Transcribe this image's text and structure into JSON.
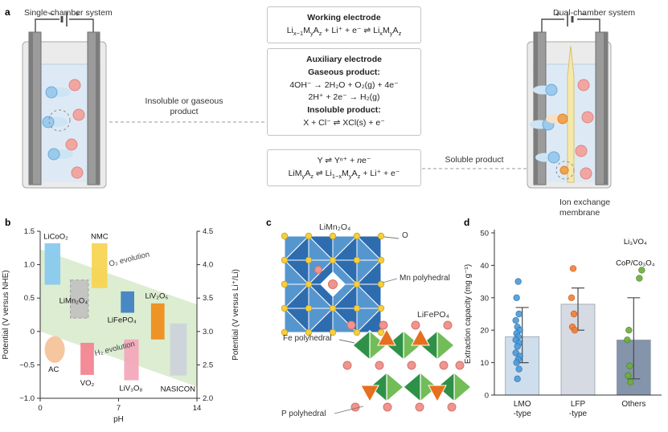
{
  "panels": {
    "a": {
      "label": "a",
      "left_title": "Single-chamber system",
      "right_title": "Dual-chamber system",
      "insoluble_label": "Insoluble or gaseous product",
      "soluble_label": "Soluble product",
      "membrane_label": "Ion exchange membrane",
      "signs": {
        "left_neg": "−",
        "left_pos": "+",
        "right_pos": "+",
        "right_neg": "−"
      },
      "working_box": {
        "title": "Working electrode",
        "eq": "Li<sub>x−1</sub>M<sub>y</sub>A<sub>z</sub> + Li⁺ + e⁻ ⇌ Li<sub>x</sub>M<sub>y</sub>A<sub>z</sub>"
      },
      "auxiliary_box": {
        "title": "Auxiliary electrode",
        "gaseous_heading": "Gaseous product:",
        "gaseous_eq1": "4OH⁻ → 2H₂O + O₂(g) + 4e⁻",
        "gaseous_eq2": "2H⁺ + 2e⁻ → H₂(g)",
        "insoluble_heading": "Insoluble product:",
        "insoluble_eq": "X + Cl⁻ ⇌ XCl(s) + e⁻"
      },
      "soluble_box": {
        "eq1": "Y ⇌ Yⁿ⁺ + <i>n</i>e⁻",
        "eq2": "LiM<sub>y</sub>A<sub>z</sub> ⇌ Li<sub>1−x</sub>M<sub>y</sub>A<sub>z</sub> + Li⁺ + e⁻"
      }
    },
    "b": {
      "label": "b"
    },
    "c": {
      "label": "c",
      "structure1_title": "LiMn₂O₄",
      "o_label": "O",
      "mn_label": "Mn polyhedral",
      "structure2_title": "LiFePO₄",
      "fe_label": "Fe polyhedral",
      "p_label": "P polyhedral",
      "colors": {
        "mn_face_dark": "#2e6cb0",
        "mn_face_light": "#5696cf",
        "o_atom": "#f4d03f",
        "o_stroke": "#c9a227",
        "li_atom": "#f0948e",
        "li_stroke": "#d4736c",
        "fe_face_dark": "#2f9147",
        "fe_face_light": "#72bd58",
        "p_tetra": "#e6701e"
      }
    },
    "d": {
      "label": "d"
    }
  },
  "chart_data": [
    {
      "panel": "b",
      "type": "scatter",
      "title": "",
      "xlabel": "pH",
      "ylabel_left": "Potential (V versus NHE)",
      "ylabel_right": "Potential (V versus Li⁺/Li)",
      "xlim": [
        0,
        14
      ],
      "ylim_left": [
        -1.0,
        1.5
      ],
      "ylim_right": [
        2.0,
        4.5
      ],
      "xticks": [
        [
          0,
          "0"
        ],
        [
          7,
          "7"
        ],
        [
          14,
          "14"
        ]
      ],
      "yticks_left": [
        [
          1.5,
          "1.5"
        ],
        [
          1.0,
          "1.0"
        ],
        [
          0.5,
          "0.5"
        ],
        [
          0,
          "0"
        ],
        [
          -0.5,
          "−0.5"
        ],
        [
          -1.0,
          "−1.0"
        ]
      ],
      "yticks_right": [
        [
          1.5,
          "4.5"
        ],
        [
          1.0,
          "4.0"
        ],
        [
          0.5,
          "3.5"
        ],
        [
          0,
          "3.0"
        ],
        [
          -0.5,
          "2.5"
        ],
        [
          -1.0,
          "2.0"
        ]
      ],
      "stability_band": {
        "o2_intercept": 1.23,
        "h2_intercept": 0,
        "slope": -0.059,
        "color": "#ddedd2"
      },
      "annotations": [
        {
          "text": "O₂ evolution",
          "ph": 8.0,
          "v": 1.05,
          "rotate": -14
        },
        {
          "text": "H₂ evolution",
          "ph": 6.7,
          "v": -0.29,
          "rotate": -14
        }
      ],
      "materials": [
        {
          "name": "LiCoO₂",
          "shape": "rect",
          "ph": [
            0.4,
            1.8
          ],
          "v": [
            0.7,
            1.32
          ],
          "color": "#85c9ef",
          "label_ph": 0.3,
          "label_v": 1.42,
          "anchor": "start"
        },
        {
          "name": "NMC",
          "shape": "rect",
          "ph": [
            4.6,
            6.0
          ],
          "v": [
            0.65,
            1.32
          ],
          "color": "#f6d44e",
          "label_ph": 5.3,
          "label_v": 1.42,
          "anchor": "middle"
        },
        {
          "name": "LiMn₂O₄",
          "shape": "rect-dashed",
          "ph": [
            2.7,
            4.3
          ],
          "v": [
            0.2,
            0.77
          ],
          "color": "#c2c2c2",
          "label_ph": 4.25,
          "label_v": 0.46,
          "anchor": "end"
        },
        {
          "name": "LiFePO₄",
          "shape": "rect",
          "ph": [
            7.2,
            8.4
          ],
          "v": [
            0.28,
            0.6
          ],
          "color": "#3c7fc0",
          "label_ph": 7.3,
          "label_v": 0.17,
          "anchor": "middle"
        },
        {
          "name": "LiV₂O₅",
          "shape": "rect",
          "ph": [
            9.9,
            11.1
          ],
          "v": [
            -0.12,
            0.42
          ],
          "color": "#ef8b16",
          "label_ph": 10.4,
          "label_v": 0.53,
          "anchor": "middle"
        },
        {
          "name": "AC",
          "shape": "ellipse",
          "ph": [
            0.4,
            2.2
          ],
          "v": [
            -0.47,
            -0.07
          ],
          "color": "#f6c39a",
          "label_ph": 1.2,
          "label_v": -0.57,
          "anchor": "middle"
        },
        {
          "name": "VO₂",
          "shape": "rect",
          "ph": [
            3.6,
            4.8
          ],
          "v": [
            -0.65,
            -0.17
          ],
          "color": "#f2828e",
          "label_ph": 4.2,
          "label_v": -0.77,
          "anchor": "middle"
        },
        {
          "name": "LiV₃O₈",
          "shape": "rect",
          "ph": [
            7.5,
            8.8
          ],
          "v": [
            -0.73,
            -0.12
          ],
          "color": "#f3a6ba",
          "label_ph": 8.1,
          "label_v": -0.85,
          "anchor": "middle"
        },
        {
          "name": "NASICON",
          "shape": "rect",
          "ph": [
            11.6,
            13.1
          ],
          "v": [
            -0.66,
            0.12
          ],
          "color": "#ccd2da",
          "label_ph": 12.3,
          "label_v": -0.86,
          "anchor": "middle"
        }
      ]
    },
    {
      "panel": "d",
      "type": "bar",
      "ylabel": "Extraction capacity (mg g⁻¹)",
      "ylim": [
        0,
        50
      ],
      "yticks": [
        0,
        10,
        20,
        30,
        40,
        50
      ],
      "bars": [
        {
          "category_lines": [
            "LMO",
            "-type"
          ],
          "mean": 18,
          "err": [
            10,
            27
          ],
          "fill": "#cfdeed",
          "points": [
            35,
            30,
            25,
            23,
            21,
            20,
            19,
            18,
            17,
            16,
            15,
            13,
            12,
            11,
            10,
            8,
            5
          ],
          "point_dx": [
            -5,
            -7,
            -4,
            -8,
            -6,
            -3,
            -7,
            -5,
            -8,
            -4,
            -6,
            -8,
            -3,
            -5,
            -7,
            -4,
            -6
          ],
          "point_color": "#4f9cd8",
          "point_stroke": "#2e77b5"
        },
        {
          "category_lines": [
            "LFP",
            "-type"
          ],
          "mean": 28,
          "err": [
            20,
            33
          ],
          "fill": "#d6dae2",
          "points": [
            39,
            30,
            25,
            21,
            20
          ],
          "point_dx": [
            -6,
            -8,
            -5,
            -7,
            -4
          ],
          "point_color": "#f0813c",
          "point_stroke": "#cf5f1d"
        },
        {
          "category_lines": [
            "Others"
          ],
          "mean": 17,
          "err": [
            5,
            30
          ],
          "fill": "#8494aa",
          "points": [
            38.5,
            36,
            20,
            17,
            9,
            6,
            4
          ],
          "point_dx": [
            10,
            7,
            -6,
            -8,
            -5,
            -7,
            -4
          ],
          "point_color": "#6fae3e",
          "point_stroke": "#4d8a26"
        }
      ],
      "annotations": [
        {
          "cat": 2,
          "v": 46.5,
          "text": "Li₃VO₄"
        },
        {
          "cat": 2,
          "v": 40,
          "text": "CoP/Co₃O₄"
        }
      ]
    }
  ]
}
